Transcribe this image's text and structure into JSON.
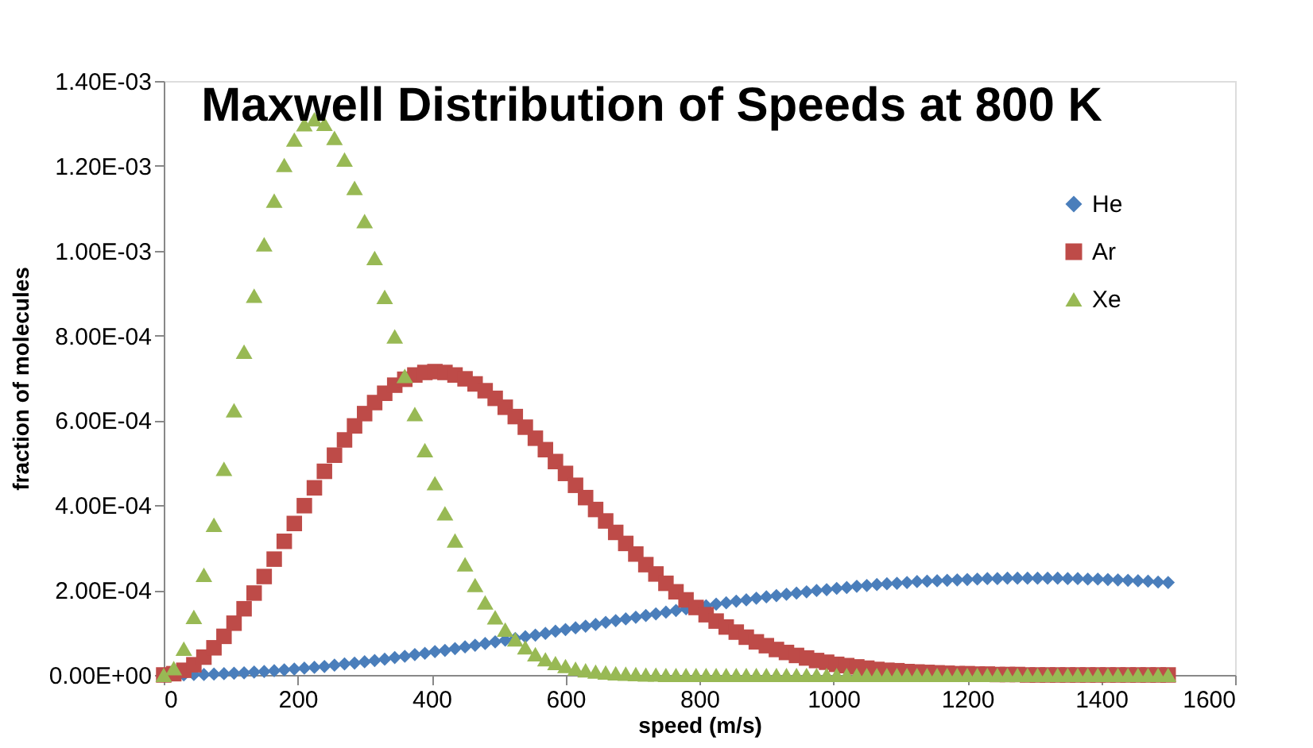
{
  "chart_data": {
    "type": "scatter",
    "title": "Maxwell Distribution of Speeds at 800 K",
    "xlabel": "speed (m/s)",
    "ylabel": "fraction of molecules",
    "x": [
      0,
      15,
      30,
      45,
      60,
      75,
      90,
      105,
      120,
      135,
      150,
      165,
      180,
      195,
      210,
      225,
      240,
      255,
      270,
      285,
      300,
      315,
      330,
      345,
      360,
      375,
      390,
      405,
      420,
      435,
      450,
      465,
      480,
      495,
      510,
      525,
      540,
      555,
      570,
      585,
      600,
      615,
      630,
      645,
      660,
      675,
      690,
      705,
      720,
      735,
      750,
      765,
      780,
      795,
      810,
      825,
      840,
      855,
      870,
      885,
      900,
      915,
      930,
      945,
      960,
      975,
      990,
      1005,
      1020,
      1035,
      1050,
      1065,
      1080,
      1095,
      1110,
      1125,
      1140,
      1155,
      1170,
      1185,
      1200,
      1215,
      1230,
      1245,
      1260,
      1275,
      1290,
      1305,
      1320,
      1335,
      1350,
      1365,
      1380,
      1395,
      1410,
      1425,
      1440,
      1455,
      1470,
      1485,
      1500
    ],
    "series": [
      {
        "name": "He",
        "color": "#4a7ebb",
        "marker": "diamond",
        "values": [
          null,
          null,
          0,
          1e-06,
          1e-06,
          2e-06,
          3e-06,
          4e-06,
          5e-06,
          7e-06,
          8e-06,
          1e-05,
          1.2e-05,
          1.4e-05,
          1.6e-05,
          1.8e-05,
          2e-05,
          2.3e-05,
          2.6e-05,
          2.8e-05,
          3.1e-05,
          3.4e-05,
          3.7e-05,
          4.1e-05,
          4.4e-05,
          4.8e-05,
          5.1e-05,
          5.5e-05,
          5.8e-05,
          6.2e-05,
          6.6e-05,
          7e-05,
          7.4e-05,
          7.8e-05,
          8.2e-05,
          8.6e-05,
          9e-05,
          9.4e-05,
          9.8e-05,
          0.000103,
          0.000107,
          0.000111,
          0.000115,
          0.000119,
          0.000124,
          0.000128,
          0.000132,
          0.000136,
          0.00014,
          0.000144,
          0.000148,
          0.000152,
          0.000156,
          null,
          0.000163,
          0.000167,
          0.00017,
          0.000174,
          0.000177,
          0.000181,
          0.000184,
          0.000187,
          0.00019,
          0.000193,
          0.000196,
          0.000199,
          0.000201,
          0.000204,
          0.000206,
          0.000209,
          0.000211,
          0.000213,
          0.000215,
          0.000216,
          0.000218,
          0.00022,
          0.000221,
          0.000222,
          0.000223,
          0.000224,
          0.000225,
          0.000226,
          0.000227,
          0.000227,
          0.000228,
          0.000228,
          0.000228,
          0.000228,
          0.000228,
          0.000228,
          0.000227,
          0.000227,
          0.000226,
          0.000226,
          0.000225,
          0.000224,
          0.000223,
          0.000222,
          0.000221,
          0.000219,
          0.000218
        ]
      },
      {
        "name": "Ar",
        "color": "#be4b48",
        "marker": "square",
        "values": [
          0,
          3e-06,
          1.1e-05,
          2.4e-05,
          4.2e-05,
          6.4e-05,
          9.1e-05,
          0.000122,
          0.000156,
          0.000193,
          0.000232,
          0.000273,
          0.000315,
          0.000357,
          0.000399,
          0.000441,
          0.00048,
          0.000518,
          0.000554,
          0.000587,
          0.000616,
          0.000642,
          0.000664,
          0.000683,
          0.000697,
          0.000707,
          0.000713,
          0.000715,
          0.000713,
          0.000707,
          0.000698,
          0.000686,
          0.00067,
          0.000652,
          0.000631,
          0.000609,
          0.000584,
          0.000558,
          0.000531,
          0.000503,
          0.000475,
          0.000447,
          0.000418,
          0.00039,
          0.000363,
          0.000336,
          0.00031,
          0.000285,
          0.00026,
          0.000238,
          0.000216,
          0.000196,
          0.000177,
          0.000159,
          0.000142,
          0.000127,
          0.000113,
          0.000101,
          8.9e-05,
          7.8e-05,
          6.9e-05,
          6e-05,
          5.3e-05,
          4.6e-05,
          4e-05,
          3.4e-05,
          3e-05,
          2.5e-05,
          2.2e-05,
          1.9e-05,
          1.6e-05,
          1.3e-05,
          1.1e-05,
          1e-05,
          8e-06,
          7e-06,
          6e-06,
          5e-06,
          4e-06,
          3e-06,
          3e-06,
          2e-06,
          2e-06,
          1e-06,
          1e-06,
          1e-06,
          0,
          0,
          0,
          0,
          0,
          0,
          0,
          0,
          0,
          0,
          0,
          0,
          0,
          0,
          0
        ]
      },
      {
        "name": "Xe",
        "color": "#98b954",
        "marker": "triangle",
        "values": [
          0,
          1.6e-05,
          6.2e-05,
          0.000137,
          0.000236,
          0.000354,
          0.000486,
          0.000624,
          0.000762,
          0.000894,
          0.001015,
          0.001118,
          0.001202,
          0.001262,
          0.001298,
          0.00131,
          0.001299,
          0.001266,
          0.001215,
          0.001148,
          0.00107,
          0.000983,
          0.000891,
          0.000798,
          0.000705,
          0.000615,
          0.00053,
          0.000452,
          0.000381,
          0.000317,
          0.000261,
          0.000212,
          0.000171,
          0.000136,
          0.000107,
          8.4e-05,
          6.5e-05,
          4.9e-05,
          3.7e-05,
          2.8e-05,
          2.1e-05,
          1.5e-05,
          1.1e-05,
          8e-06,
          6e-06,
          4e-06,
          3e-06,
          2e-06,
          1e-06,
          1e-06,
          0,
          0,
          0,
          0,
          0,
          0,
          0,
          0,
          0,
          0,
          0,
          0,
          0,
          0,
          0,
          0,
          0,
          0,
          0,
          0,
          0,
          0,
          0,
          0,
          0,
          0,
          0,
          0,
          0,
          0,
          0,
          0,
          0,
          0,
          0,
          0,
          0,
          0,
          0,
          0,
          0,
          0,
          0,
          0,
          0,
          0,
          0,
          0,
          0,
          0,
          0
        ]
      }
    ],
    "xlim": [
      0,
      1600
    ],
    "xticks": [
      0,
      200,
      400,
      600,
      800,
      1000,
      1200,
      1400,
      1600
    ],
    "ylim": [
      0,
      0.0014
    ],
    "yticks": [
      {
        "value": 0,
        "label": "0.00E+00"
      },
      {
        "value": 0.0002,
        "label": "2.00E-04"
      },
      {
        "value": 0.0004,
        "label": "4.00E-04"
      },
      {
        "value": 0.0006,
        "label": "6.00E-04"
      },
      {
        "value": 0.0008,
        "label": "8.00E-04"
      },
      {
        "value": 0.001,
        "label": "1.00E-03"
      },
      {
        "value": 0.0012,
        "label": "1.20E-03"
      },
      {
        "value": 0.0014,
        "label": "1.40E-03"
      }
    ],
    "grid": false,
    "legend": "top right"
  }
}
